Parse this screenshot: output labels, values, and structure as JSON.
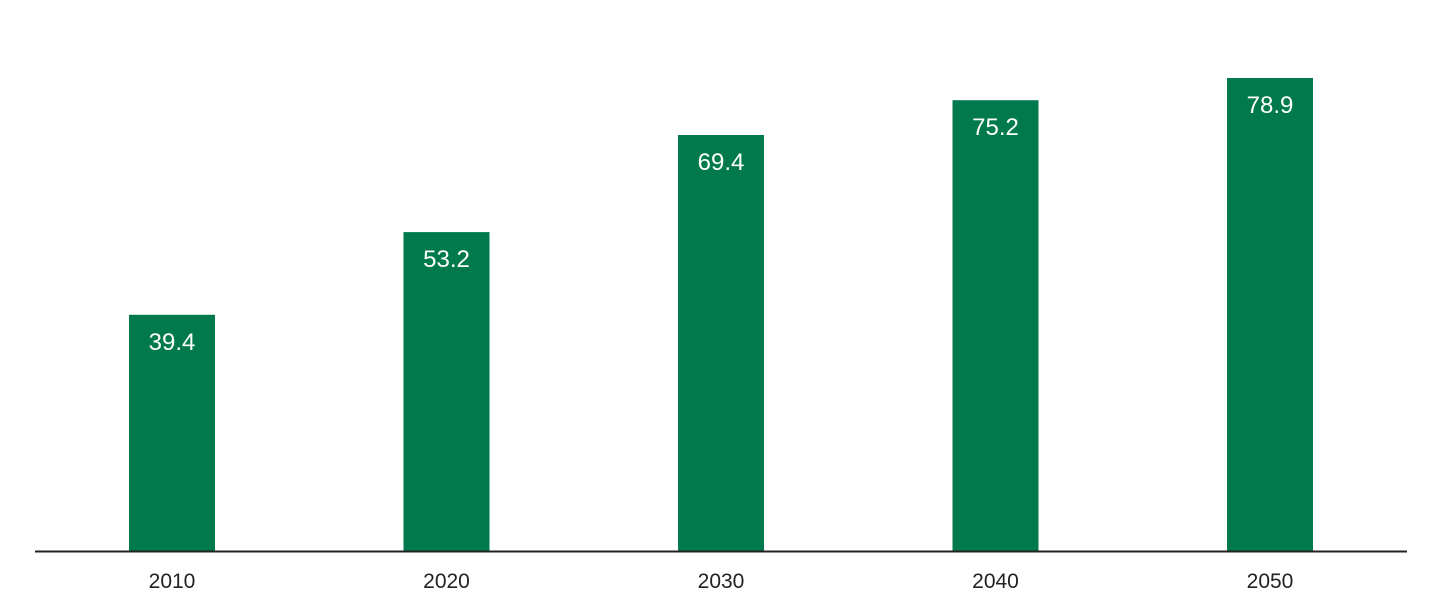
{
  "chart_data": {
    "type": "bar",
    "categories": [
      "2010",
      "2020",
      "2030",
      "2040",
      "2050"
    ],
    "values": [
      39.4,
      53.2,
      69.4,
      75.2,
      78.9
    ],
    "data_labels": [
      "39.4",
      "53.2",
      "69.4",
      "75.2",
      "78.9"
    ],
    "title": "",
    "xlabel": "",
    "ylabel": "",
    "ylim": [
      0,
      80
    ],
    "grid": false,
    "legend": "none",
    "bar_color": "#007a4d",
    "axis_color": "#222222",
    "label_color": "#ffffff"
  }
}
